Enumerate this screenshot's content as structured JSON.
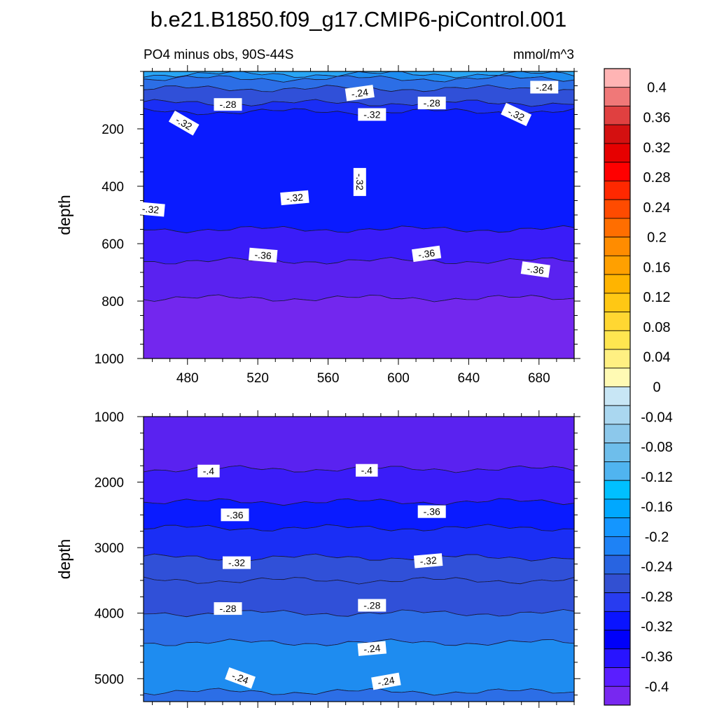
{
  "figure": {
    "title": "b.e21.B1850.f09_g17.CMIP6-piControl.001",
    "subtitle_left": "PO4 minus obs, 90S-44S",
    "subtitle_right": "mmol/m^3"
  },
  "chart_data": [
    {
      "type": "heatmap",
      "panel": "upper",
      "ylabel": "depth",
      "xlim": [
        455,
        700
      ],
      "ylim": [
        1000,
        0
      ],
      "y_reversed": true,
      "xticks": [
        480,
        520,
        560,
        600,
        640,
        680
      ],
      "yticks": [
        200,
        400,
        600,
        800,
        1000
      ],
      "bands": [
        {
          "top": 0,
          "bottom": 10,
          "value": -0.16
        },
        {
          "top": 10,
          "bottom": 25,
          "value": -0.2
        },
        {
          "top": 25,
          "bottom": 60,
          "value": -0.24
        },
        {
          "top": 60,
          "bottom": 110,
          "value": -0.28
        },
        {
          "top": 110,
          "bottom": 140,
          "value": -0.32
        },
        {
          "top": 140,
          "bottom": 550,
          "value": -0.36
        },
        {
          "top": 550,
          "bottom": 660,
          "value": -0.4
        },
        {
          "top": 660,
          "bottom": 790,
          "value": -0.44
        },
        {
          "top": 790,
          "bottom": 1000,
          "value": -0.48
        }
      ],
      "contour_labels": [
        {
          "x": 578,
          "y": 75,
          "text": "-.24",
          "angle": -8
        },
        {
          "x": 683,
          "y": 55,
          "text": "-.24",
          "angle": 0
        },
        {
          "x": 503,
          "y": 115,
          "text": "-.28",
          "angle": 0
        },
        {
          "x": 619,
          "y": 110,
          "text": "-.28",
          "angle": 0
        },
        {
          "x": 585,
          "y": 150,
          "text": "-.32",
          "angle": 0
        },
        {
          "x": 478,
          "y": 180,
          "text": "-.32",
          "angle": 30
        },
        {
          "x": 667,
          "y": 150,
          "text": "-.32",
          "angle": 25
        },
        {
          "x": 578,
          "y": 385,
          "text": "-.32",
          "angle": 90
        },
        {
          "x": 541,
          "y": 440,
          "text": "-.32",
          "angle": -5
        },
        {
          "x": 459,
          "y": 480,
          "text": "-.32",
          "angle": 5
        },
        {
          "x": 523,
          "y": 640,
          "text": "-.36",
          "angle": 5
        },
        {
          "x": 616,
          "y": 635,
          "text": "-.36",
          "angle": -8
        },
        {
          "x": 678,
          "y": 690,
          "text": "-.36",
          "angle": 8
        }
      ]
    },
    {
      "type": "heatmap",
      "panel": "lower",
      "ylabel": "depth",
      "xlim": [
        455,
        700
      ],
      "ylim": [
        5350,
        1000
      ],
      "y_reversed": true,
      "yticks": [
        1000,
        2000,
        3000,
        4000,
        5000
      ],
      "bands": [
        {
          "top": 1000,
          "bottom": 1800,
          "value": -0.44
        },
        {
          "top": 1800,
          "bottom": 2300,
          "value": -0.4
        },
        {
          "top": 2300,
          "bottom": 2700,
          "value": -0.36
        },
        {
          "top": 2700,
          "bottom": 3150,
          "value": -0.32
        },
        {
          "top": 3150,
          "bottom": 3500,
          "value": -0.28
        },
        {
          "top": 3500,
          "bottom": 4000,
          "value": -0.28
        },
        {
          "top": 4000,
          "bottom": 4450,
          "value": -0.24
        },
        {
          "top": 4450,
          "bottom": 5200,
          "value": -0.2
        },
        {
          "top": 5200,
          "bottom": 5350,
          "value": -0.24
        }
      ],
      "contour_labels": [
        {
          "x": 492,
          "y": 1830,
          "text": "-.4",
          "angle": 0
        },
        {
          "x": 582,
          "y": 1820,
          "text": "-.4",
          "angle": 0
        },
        {
          "x": 507,
          "y": 2500,
          "text": "-.36",
          "angle": 0
        },
        {
          "x": 619,
          "y": 2450,
          "text": "-.36",
          "angle": 0
        },
        {
          "x": 508,
          "y": 3230,
          "text": "-.32",
          "angle": 0
        },
        {
          "x": 617,
          "y": 3200,
          "text": "-.32",
          "angle": -5
        },
        {
          "x": 503,
          "y": 3930,
          "text": "-.28",
          "angle": 0
        },
        {
          "x": 585,
          "y": 3880,
          "text": "-.28",
          "angle": 0
        },
        {
          "x": 585,
          "y": 4540,
          "text": "-.24",
          "angle": -5
        },
        {
          "x": 510,
          "y": 4990,
          "text": "-.24",
          "angle": 20
        },
        {
          "x": 593,
          "y": 5040,
          "text": "-.24",
          "angle": -10
        }
      ]
    }
  ],
  "colorbar": {
    "labels": [
      "0.4",
      "0.36",
      "0.32",
      "0.28",
      "0.24",
      "0.2",
      "0.16",
      "0.12",
      "0.08",
      "0.04",
      "0",
      "-0.04",
      "-0.08",
      "-0.12",
      "-0.16",
      "-0.2",
      "-0.24",
      "-0.28",
      "-0.32",
      "-0.36",
      "-0.4"
    ],
    "colors": [
      "#ffb4b4",
      "#f07878",
      "#e04040",
      "#d41010",
      "#e60000",
      "#ff0000",
      "#ff2800",
      "#ff4b00",
      "#ff6e00",
      "#ff8c00",
      "#ffa000",
      "#ffb400",
      "#ffc814",
      "#ffd732",
      "#ffe650",
      "#fff082",
      "#fffab4",
      "#c8e6f5",
      "#aad7f0",
      "#8cc8eb",
      "#6ebeeb",
      "#50b4f0",
      "#00c0ff",
      "#00a8ff",
      "#1496ff",
      "#1e82f5",
      "#2864e1",
      "#3250d2",
      "#283cf0",
      "#0a14ff",
      "#0000fa",
      "#2814ff",
      "#5a1eff",
      "#7828f0"
    ]
  }
}
